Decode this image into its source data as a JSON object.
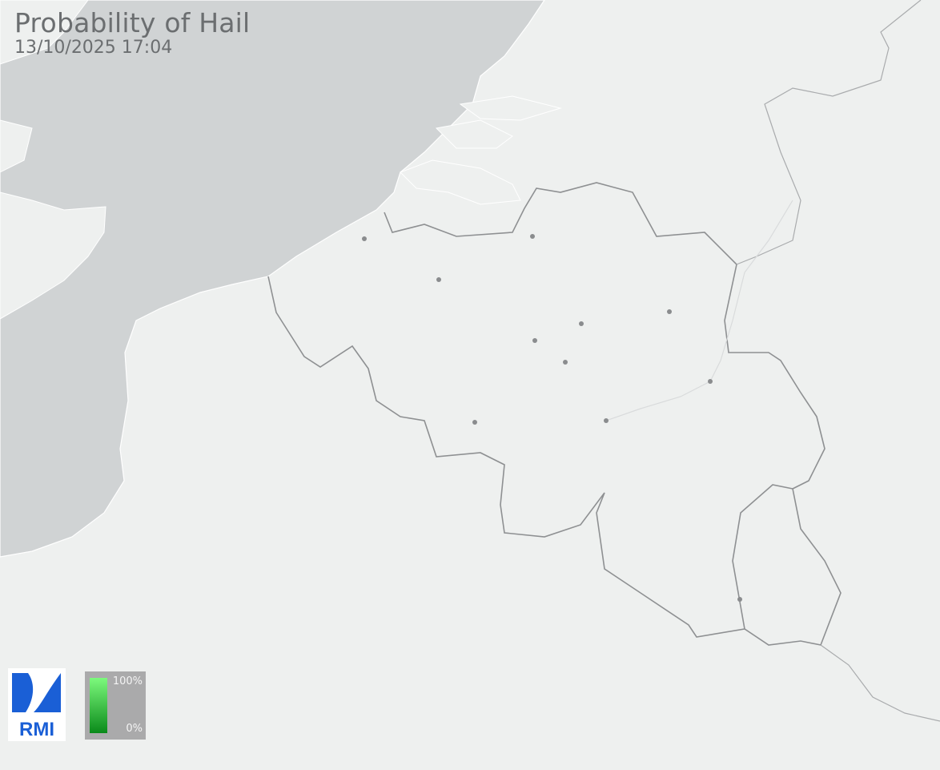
{
  "header": {
    "title": "Probability of Hail",
    "timestamp": "13/10/2025 17:04"
  },
  "legend": {
    "max_label": "100%",
    "min_label": "0%",
    "max_color": "#7dfa7d",
    "min_color": "#0a8a1a"
  },
  "logo": {
    "text": "RMI",
    "color": "#1a5fd6"
  },
  "map": {
    "land_color": "#eef0ef",
    "sea_color": "#d0d3d4",
    "border_color": "#8e9092"
  }
}
